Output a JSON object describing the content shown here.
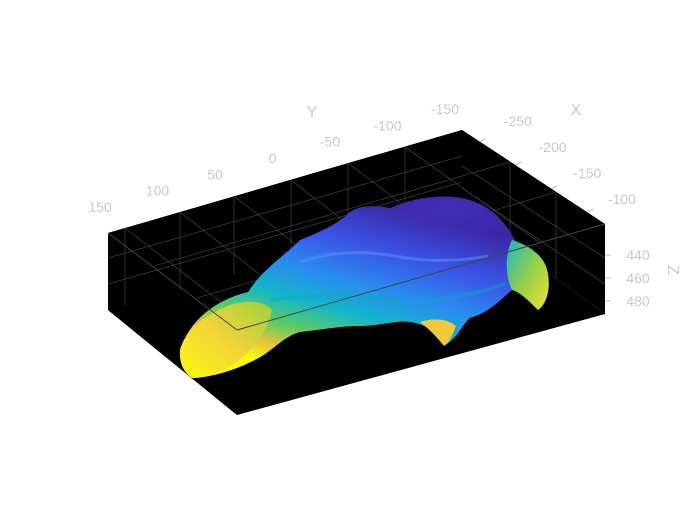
{
  "chart_data": {
    "type": "surface",
    "colormap": "parula",
    "background": "#000000",
    "grid": true,
    "x_axis": {
      "label": "X",
      "ticks": [
        -250,
        -200,
        -150,
        -100
      ],
      "tick_labels": [
        "-250",
        "-200",
        "-150",
        "-100"
      ]
    },
    "y_axis": {
      "label": "Y",
      "ticks": [
        150,
        100,
        50,
        0,
        -50,
        -100,
        -150
      ],
      "tick_labels": [
        "150",
        "100",
        "50",
        "0",
        "-50",
        "-100",
        "-150"
      ]
    },
    "z_axis": {
      "label": "Z",
      "ticks": [
        440,
        460,
        480
      ],
      "tick_labels": [
        "440",
        "460",
        "480"
      ],
      "direction": "reverse"
    },
    "color_range": [
      "#3d26a8",
      "#2f6bf0",
      "#12b8c8",
      "#5fcb62",
      "#f6c63b",
      "#f9fb0e"
    ]
  }
}
